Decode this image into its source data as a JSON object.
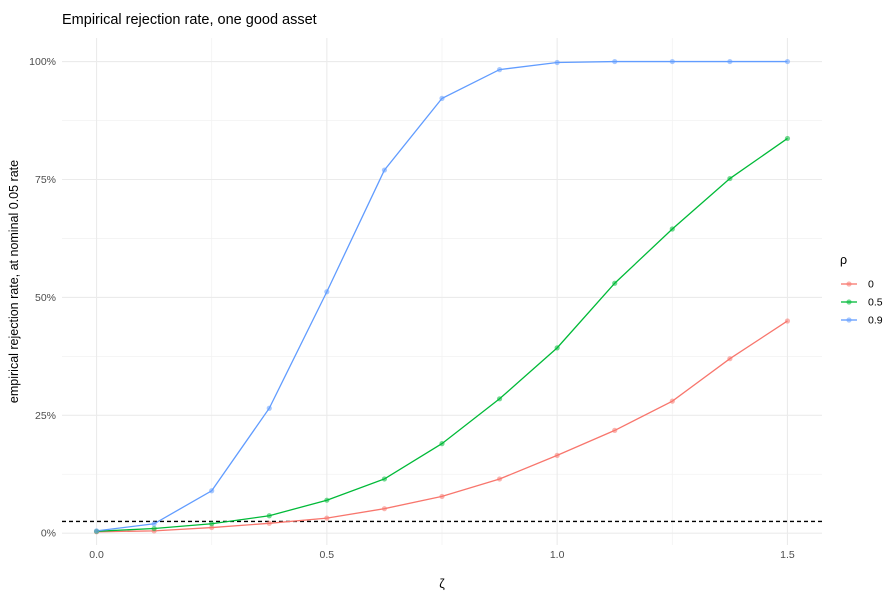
{
  "chart_data": {
    "type": "line",
    "title": "Empirical rejection rate, one good asset",
    "xlabel": "ζ",
    "ylabel": "empirical rejection rate, at nominal 0.05 rate",
    "x": [
      0,
      0.125,
      0.25,
      0.375,
      0.5,
      0.625,
      0.75,
      0.875,
      1.0,
      1.125,
      1.25,
      1.375,
      1.5
    ],
    "xlim": [
      -0.075,
      1.575
    ],
    "ylim": [
      -0.025,
      1.05
    ],
    "x_ticks": [
      0.0,
      0.5,
      1.0,
      1.5
    ],
    "x_tick_labels": [
      "0.0",
      "0.5",
      "1.0",
      "1.5"
    ],
    "y_ticks": [
      0,
      0.25,
      0.5,
      0.75,
      1.0
    ],
    "y_tick_labels": [
      "0%",
      "25%",
      "50%",
      "75%",
      "100%"
    ],
    "reference_line": {
      "y": 0.025,
      "style": "dashed",
      "color": "#000000"
    },
    "grid": true,
    "legend": {
      "title": "ρ",
      "position": "right"
    },
    "series": [
      {
        "name": "0",
        "color": "#F8766D",
        "values": [
          0.003,
          0.005,
          0.012,
          0.021,
          0.032,
          0.052,
          0.078,
          0.115,
          0.165,
          0.218,
          0.28,
          0.37,
          0.45
        ]
      },
      {
        "name": "0.5",
        "color": "#00BA38",
        "values": [
          0.004,
          0.01,
          0.02,
          0.037,
          0.07,
          0.115,
          0.19,
          0.285,
          0.393,
          0.53,
          0.645,
          0.752,
          0.837
        ]
      },
      {
        "name": "0.9",
        "color": "#619CFF",
        "values": [
          0.005,
          0.02,
          0.09,
          0.265,
          0.512,
          0.77,
          0.922,
          0.983,
          0.998,
          1.0,
          1.0,
          1.0,
          1.0
        ]
      }
    ]
  }
}
